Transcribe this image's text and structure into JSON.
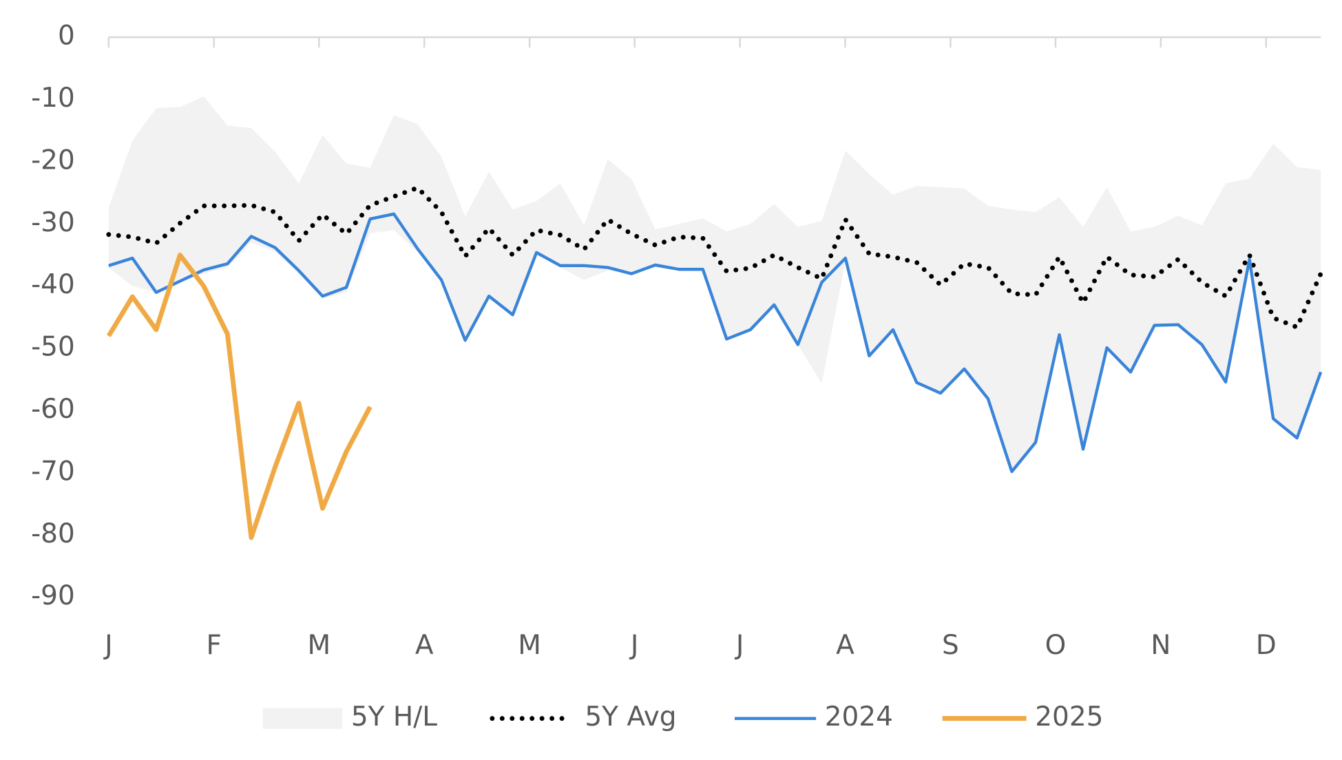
{
  "chart_data": {
    "type": "line",
    "x": [
      1,
      2,
      3,
      4,
      5,
      6,
      7,
      8,
      9,
      10,
      11,
      12,
      13,
      14,
      15,
      16,
      17,
      18,
      19,
      20,
      21,
      22,
      23,
      24,
      25,
      26,
      27,
      28,
      29,
      30,
      31,
      32,
      33,
      34,
      35,
      36,
      37,
      38,
      39,
      40,
      41,
      42,
      43,
      44,
      45,
      46,
      47,
      48,
      49,
      50,
      51,
      52
    ],
    "xlim": [
      1,
      52
    ],
    "xticks": [
      {
        "value": 1,
        "label": "J"
      },
      {
        "value": 5.43,
        "label": "F"
      },
      {
        "value": 9.85,
        "label": "M"
      },
      {
        "value": 14.28,
        "label": "A"
      },
      {
        "value": 18.71,
        "label": "M"
      },
      {
        "value": 23.13,
        "label": "J"
      },
      {
        "value": 27.56,
        "label": "J"
      },
      {
        "value": 31.99,
        "label": "A"
      },
      {
        "value": 36.42,
        "label": "S"
      },
      {
        "value": 40.84,
        "label": "O"
      },
      {
        "value": 45.27,
        "label": "N"
      },
      {
        "value": 49.7,
        "label": "D"
      }
    ],
    "ylim": [
      -95,
      0
    ],
    "yticks": [
      0,
      -10,
      -20,
      -30,
      -40,
      -50,
      -60,
      -70,
      -80,
      -90
    ],
    "band": {
      "name": "5Y H/L",
      "color": "#f2f2f2",
      "high": [
        -27.4,
        -16.6,
        -11.4,
        -11.2,
        -9.5,
        -14.2,
        -14.6,
        -18.4,
        -23.5,
        -15.7,
        -20.3,
        -21,
        -12.5,
        -14,
        -19.2,
        -28.8,
        -21.6,
        -27.7,
        -26.3,
        -23.5,
        -30.2,
        -19.6,
        -22.8,
        -30.9,
        -30,
        -29.1,
        -31.2,
        -30,
        -26.8,
        -30.5,
        -29.5,
        -18.2,
        -22,
        -25.3,
        -23.9,
        -24.1,
        -24.3,
        -27.1,
        -27.7,
        -28.1,
        -25.7,
        -30.5,
        -24.1,
        -31.2,
        -30.5,
        -28.7,
        -30.2,
        -23.5,
        -22.7,
        -17.1,
        -20.9,
        -21.3
      ],
      "low": [
        -37,
        -40,
        -41,
        -39.5,
        -38,
        -37,
        -33,
        -34.5,
        -38,
        -42,
        -41,
        -31.5,
        -31,
        -34.5,
        -39,
        -48.7,
        -42,
        -44.6,
        -35,
        -37,
        -39,
        -37.5,
        -38,
        -37,
        -37.5,
        -37.5,
        -48.5,
        -47,
        -43,
        -49.4,
        -55.6,
        -36,
        -51.2,
        -47,
        -55.5,
        -57.2,
        -53.3,
        -58.1,
        -69.8,
        -65.1,
        -47.8,
        -66.2,
        -49.9,
        -53.8,
        -46.3,
        -46.2,
        -49.4,
        -55.4,
        -36,
        -61.3,
        -64.4,
        -53.8
      ]
    },
    "series": [
      {
        "name": "5Y Avg",
        "color": "#000000",
        "style": "dotted",
        "values": [
          -31.7,
          -32.1,
          -33.1,
          -29.9,
          -27.1,
          -27.1,
          -27,
          -28.1,
          -32.7,
          -28.5,
          -31.6,
          -27,
          -25.6,
          -24.2,
          -28.1,
          -35.2,
          -30.7,
          -35,
          -31,
          -31.8,
          -34.1,
          -29.3,
          -31.6,
          -33.4,
          -32.1,
          -32.3,
          -37.6,
          -37.1,
          -35,
          -37,
          -38.8,
          -29.3,
          -34.8,
          -35.3,
          -36.2,
          -39.8,
          -36.4,
          -37,
          -41.2,
          -41.4,
          -35.3,
          -42.7,
          -35.3,
          -38.2,
          -38.5,
          -35.7,
          -39.4,
          -41.6,
          -35,
          -45.1,
          -46.6,
          -38
        ]
      },
      {
        "name": "2024",
        "color": "#3a84d9",
        "style": "solid",
        "values": [
          -36.7,
          -35.5,
          -41,
          -39.2,
          -37.4,
          -36.4,
          -32,
          -33.8,
          -37.5,
          -41.6,
          -40.2,
          -29.2,
          -28.4,
          -34,
          -39,
          -48.7,
          -41.6,
          -44.6,
          -34.6,
          -36.7,
          -36.7,
          -37,
          -38,
          -36.6,
          -37.3,
          -37.3,
          -48.5,
          -47,
          -43,
          -49.4,
          -39.4,
          -35.5,
          -51.2,
          -47,
          -55.5,
          -57.2,
          -53.3,
          -58.1,
          -69.8,
          -65.1,
          -47.8,
          -66.2,
          -49.9,
          -53.8,
          -46.3,
          -46.2,
          -49.4,
          -55.4,
          -35.7,
          -61.3,
          -64.4,
          -53.8
        ]
      },
      {
        "name": "2025",
        "color": "#f0aa45",
        "style": "thick",
        "values": [
          -48,
          -41.7,
          -47,
          -35,
          -40,
          -47.7,
          -80.4,
          -69.1,
          -58.8,
          -75.7,
          -66.6,
          -59.4,
          null,
          null,
          null,
          null,
          null,
          null,
          null,
          null,
          null,
          null,
          null,
          null,
          null,
          null,
          null,
          null,
          null,
          null,
          null,
          null,
          null,
          null,
          null,
          null,
          null,
          null,
          null,
          null,
          null,
          null,
          null,
          null,
          null,
          null,
          null,
          null,
          null,
          null,
          null,
          null
        ]
      }
    ]
  }
}
